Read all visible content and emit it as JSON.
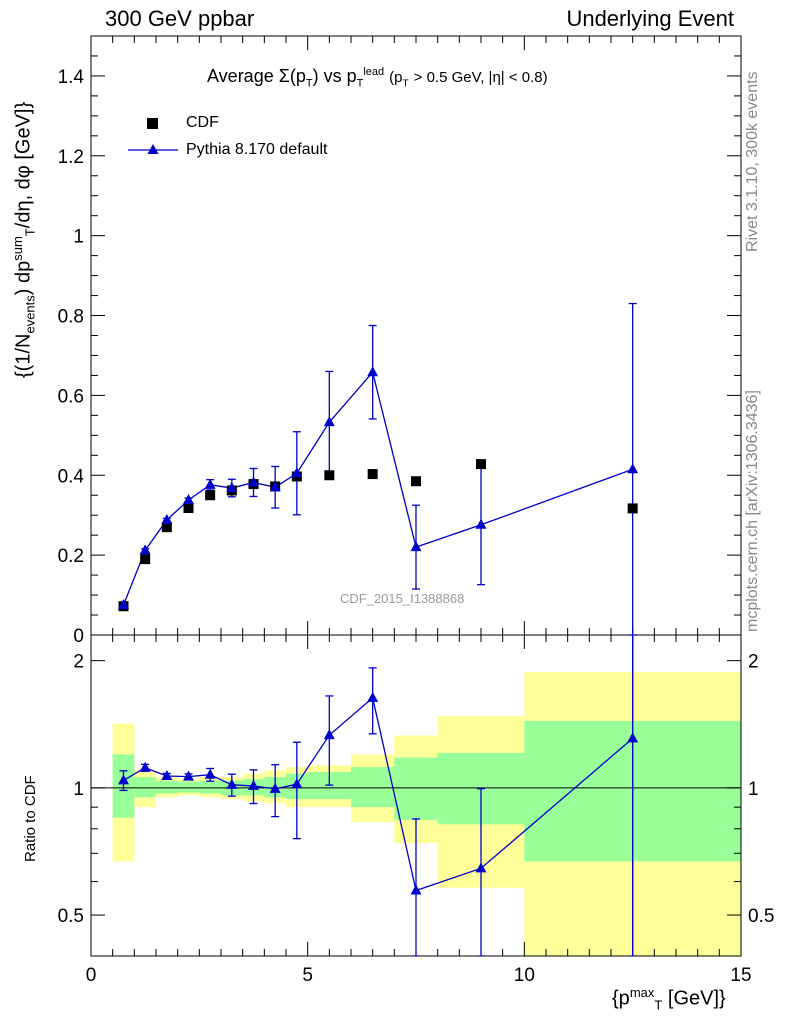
{
  "header": {
    "left": "300 GeV ppbar",
    "right": "Underlying Event",
    "rivet": "Rivet 3.1.10,  300k events",
    "mcplots": "mcplots.cern.ch [arXiv:1306.3436]"
  },
  "title": {
    "average": "Average",
    "sigma": "Σ(p",
    "t1": "T",
    "vs": ") vs p",
    "lead": "lead",
    "t2": "T",
    "cut": "(p",
    "t3": "T",
    "cut_rest": "> 0.5 GeV, |η| < 0.8)"
  },
  "axes": {
    "ylabel": "{(1/N",
    "ylabel_events": "events",
    "ylabel_mid": ") dp",
    "ylabel_sum": "sum",
    "ylabel_T": "T",
    "ylabel_end": "/dη, dφ [GeV]}",
    "ratio_ylabel": "Ratio to CDF",
    "xlabel_open": "{p",
    "xlabel_max": "max",
    "xlabel_T": "T",
    "xlabel_close": "[GeV]}"
  },
  "watermark": "CDF_2015_I1388868",
  "legend": {
    "data": "CDF",
    "mc": "Pythia 8.170 default"
  },
  "colors": {
    "data": "#000000",
    "mc": "#0000cc",
    "band_inner": "#99ff99",
    "band_outer": "#ffff99"
  },
  "chart_data": {
    "type": "scatter",
    "xlim": [
      0,
      15
    ],
    "ylim": [
      0,
      1.5
    ],
    "ratio_ylim": [
      0.4,
      2.3
    ],
    "ratio_scale": "log",
    "x_ticks": [
      "0",
      "5",
      "10",
      "15"
    ],
    "y_ticks": [
      "0",
      "0.2",
      "0.4",
      "0.6",
      "0.8",
      "1",
      "1.2",
      "1.4"
    ],
    "ratio_ticks": [
      "0.5",
      "1",
      "2"
    ],
    "bins": [
      {
        "lo": 0.5,
        "hi": 1.0,
        "x": 0.75,
        "cdf": 0.072,
        "mc": 0.075,
        "mc_err": 0.004,
        "band_in": [
          0.85,
          1.2
        ],
        "band_out": [
          0.67,
          1.42
        ]
      },
      {
        "lo": 1.0,
        "hi": 1.5,
        "x": 1.25,
        "cdf": 0.19,
        "mc": 0.212,
        "mc_err": 0.004,
        "band_in": [
          0.95,
          1.06
        ],
        "band_out": [
          0.9,
          1.1
        ]
      },
      {
        "lo": 1.5,
        "hi": 2.0,
        "x": 1.75,
        "cdf": 0.27,
        "mc": 0.288,
        "mc_err": 0.004,
        "band_in": [
          0.97,
          1.04
        ],
        "band_out": [
          0.95,
          1.06
        ]
      },
      {
        "lo": 2.0,
        "hi": 2.5,
        "x": 2.25,
        "cdf": 0.318,
        "mc": 0.338,
        "mc_err": 0.005,
        "band_in": [
          0.975,
          1.035
        ],
        "band_out": [
          0.96,
          1.05
        ]
      },
      {
        "lo": 2.5,
        "hi": 3.0,
        "x": 2.75,
        "cdf": 0.35,
        "mc": 0.376,
        "mc_err": 0.013,
        "band_in": [
          0.97,
          1.04
        ],
        "band_out": [
          0.95,
          1.06
        ]
      },
      {
        "lo": 3.0,
        "hi": 3.5,
        "x": 3.25,
        "cdf": 0.362,
        "mc": 0.368,
        "mc_err": 0.022,
        "band_in": [
          0.96,
          1.04
        ],
        "band_out": [
          0.94,
          1.06
        ]
      },
      {
        "lo": 3.5,
        "hi": 4.0,
        "x": 3.75,
        "cdf": 0.378,
        "mc": 0.382,
        "mc_err": 0.035,
        "band_in": [
          0.96,
          1.05
        ],
        "band_out": [
          0.93,
          1.08
        ]
      },
      {
        "lo": 4.0,
        "hi": 4.5,
        "x": 4.25,
        "cdf": 0.372,
        "mc": 0.37,
        "mc_err": 0.052,
        "band_in": [
          0.95,
          1.06
        ],
        "band_out": [
          0.92,
          1.1
        ]
      },
      {
        "lo": 4.5,
        "hi": 5.0,
        "x": 4.75,
        "cdf": 0.397,
        "mc": 0.405,
        "mc_err": 0.104,
        "band_in": [
          0.94,
          1.08
        ],
        "band_out": [
          0.9,
          1.12
        ]
      },
      {
        "lo": 5.0,
        "hi": 6.0,
        "x": 5.5,
        "cdf": 0.4,
        "mc": 0.533,
        "mc_err": 0.127,
        "band_in": [
          0.94,
          1.09
        ],
        "band_out": [
          0.9,
          1.13
        ]
      },
      {
        "lo": 6.0,
        "hi": 7.0,
        "x": 6.5,
        "cdf": 0.403,
        "mc": 0.658,
        "mc_err": 0.117,
        "band_in": [
          0.9,
          1.12
        ],
        "band_out": [
          0.83,
          1.2
        ]
      },
      {
        "lo": 7.0,
        "hi": 8.0,
        "x": 7.5,
        "cdf": 0.385,
        "mc": 0.22,
        "mc_err": 0.105,
        "band_in": [
          0.84,
          1.18
        ],
        "band_out": [
          0.74,
          1.33
        ]
      },
      {
        "lo": 8.0,
        "hi": 10.0,
        "x": 9.0,
        "cdf": 0.428,
        "mc": 0.276,
        "mc_err": 0.15,
        "band_in": [
          0.82,
          1.21
        ],
        "band_out": [
          0.58,
          1.48
        ]
      },
      {
        "lo": 10.0,
        "hi": 15.0,
        "x": 12.5,
        "cdf": 0.317,
        "mc": 0.415,
        "mc_err": 0.415,
        "band_in": [
          0.67,
          1.44
        ],
        "band_out": [
          0.33,
          1.88
        ]
      }
    ]
  }
}
